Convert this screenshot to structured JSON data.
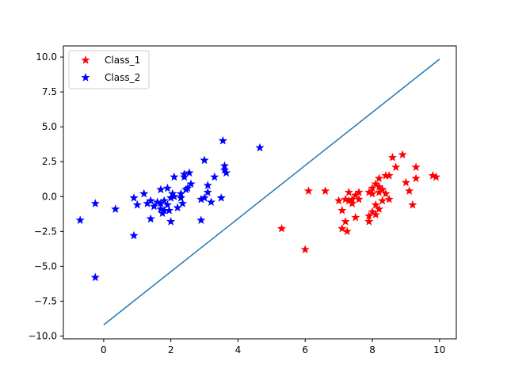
{
  "chart_data": {
    "type": "scatter",
    "title": "",
    "xlabel": "",
    "ylabel": "",
    "xlim": [
      -1.2,
      10.5
    ],
    "ylim": [
      -10.2,
      10.8
    ],
    "xticks": [
      0,
      2,
      4,
      6,
      8,
      10
    ],
    "yticks": [
      -10.0,
      -7.5,
      -5.0,
      -2.5,
      0.0,
      2.5,
      5.0,
      7.5,
      10.0
    ],
    "xtick_labels": [
      "0",
      "2",
      "4",
      "6",
      "8",
      "10"
    ],
    "ytick_labels": [
      "−10.0",
      "−7.5",
      "−5.0",
      "−2.5",
      "0.0",
      "2.5",
      "5.0",
      "7.5",
      "10.0"
    ],
    "grid": false,
    "legend_position": "upper-left",
    "series": [
      {
        "name": "Class_1",
        "marker": "star",
        "color": "#ff0000",
        "points": [
          [
            5.3,
            -2.3
          ],
          [
            6.0,
            -3.8
          ],
          [
            6.1,
            0.4
          ],
          [
            6.6,
            0.4
          ],
          [
            7.0,
            -0.3
          ],
          [
            7.1,
            -1.0
          ],
          [
            7.1,
            -2.3
          ],
          [
            7.2,
            -0.2
          ],
          [
            7.2,
            -1.8
          ],
          [
            7.25,
            -2.5
          ],
          [
            7.3,
            0.3
          ],
          [
            7.3,
            -0.3
          ],
          [
            7.4,
            -0.5
          ],
          [
            7.4,
            -0.2
          ],
          [
            7.5,
            0.1
          ],
          [
            7.5,
            -1.5
          ],
          [
            7.6,
            0.3
          ],
          [
            7.6,
            -0.2
          ],
          [
            7.9,
            0.3
          ],
          [
            7.9,
            -1.4
          ],
          [
            7.9,
            -1.8
          ],
          [
            8.0,
            0.6
          ],
          [
            8.0,
            0.2
          ],
          [
            8.0,
            -1.1
          ],
          [
            8.1,
            0.9
          ],
          [
            8.1,
            -0.6
          ],
          [
            8.1,
            -1.3
          ],
          [
            8.2,
            1.3
          ],
          [
            8.2,
            0.7
          ],
          [
            8.2,
            0.3
          ],
          [
            8.2,
            -0.9
          ],
          [
            8.3,
            0.5
          ],
          [
            8.3,
            -0.3
          ],
          [
            8.4,
            1.5
          ],
          [
            8.4,
            0.2
          ],
          [
            8.5,
            1.5
          ],
          [
            8.5,
            -0.2
          ],
          [
            8.6,
            2.8
          ],
          [
            8.7,
            2.1
          ],
          [
            8.9,
            3.0
          ],
          [
            9.0,
            1.0
          ],
          [
            9.1,
            0.4
          ],
          [
            9.2,
            -0.6
          ],
          [
            9.3,
            2.1
          ],
          [
            9.3,
            1.3
          ],
          [
            9.8,
            1.5
          ],
          [
            9.9,
            1.4
          ]
        ]
      },
      {
        "name": "Class_2",
        "marker": "star",
        "color": "#0000ff",
        "points": [
          [
            -0.7,
            -1.7
          ],
          [
            -0.25,
            -0.5
          ],
          [
            -0.25,
            -5.8
          ],
          [
            0.35,
            -0.9
          ],
          [
            0.9,
            -0.1
          ],
          [
            0.9,
            -2.8
          ],
          [
            1.0,
            -0.6
          ],
          [
            1.2,
            0.2
          ],
          [
            1.3,
            -0.5
          ],
          [
            1.4,
            -0.3
          ],
          [
            1.4,
            -1.6
          ],
          [
            1.5,
            -0.7
          ],
          [
            1.6,
            -0.4
          ],
          [
            1.7,
            0.5
          ],
          [
            1.7,
            -0.5
          ],
          [
            1.7,
            -0.9
          ],
          [
            1.75,
            -1.2
          ],
          [
            1.8,
            -0.3
          ],
          [
            1.8,
            -1.0
          ],
          [
            1.9,
            0.6
          ],
          [
            1.9,
            -0.6
          ],
          [
            1.95,
            -1.0
          ],
          [
            2.0,
            -1.8
          ],
          [
            2.0,
            -0.1
          ],
          [
            2.05,
            0.2
          ],
          [
            2.1,
            0.0
          ],
          [
            2.1,
            1.4
          ],
          [
            2.2,
            -0.8
          ],
          [
            2.3,
            -0.1
          ],
          [
            2.3,
            0.2
          ],
          [
            2.35,
            -0.5
          ],
          [
            2.4,
            1.4
          ],
          [
            2.4,
            1.6
          ],
          [
            2.45,
            0.5
          ],
          [
            2.5,
            0.6
          ],
          [
            2.55,
            1.7
          ],
          [
            2.6,
            0.9
          ],
          [
            2.9,
            -1.7
          ],
          [
            2.9,
            -0.2
          ],
          [
            3.0,
            -0.1
          ],
          [
            3.0,
            2.6
          ],
          [
            3.1,
            0.3
          ],
          [
            3.1,
            0.8
          ],
          [
            3.2,
            -0.4
          ],
          [
            3.3,
            1.4
          ],
          [
            3.5,
            -0.1
          ],
          [
            3.55,
            4.0
          ],
          [
            3.6,
            1.9
          ],
          [
            3.6,
            2.2
          ],
          [
            3.65,
            1.7
          ],
          [
            4.65,
            3.5
          ]
        ]
      }
    ],
    "decision_line": {
      "color": "#1f77b4",
      "x": [
        0,
        10
      ],
      "y": [
        -9.2,
        9.85
      ]
    }
  }
}
